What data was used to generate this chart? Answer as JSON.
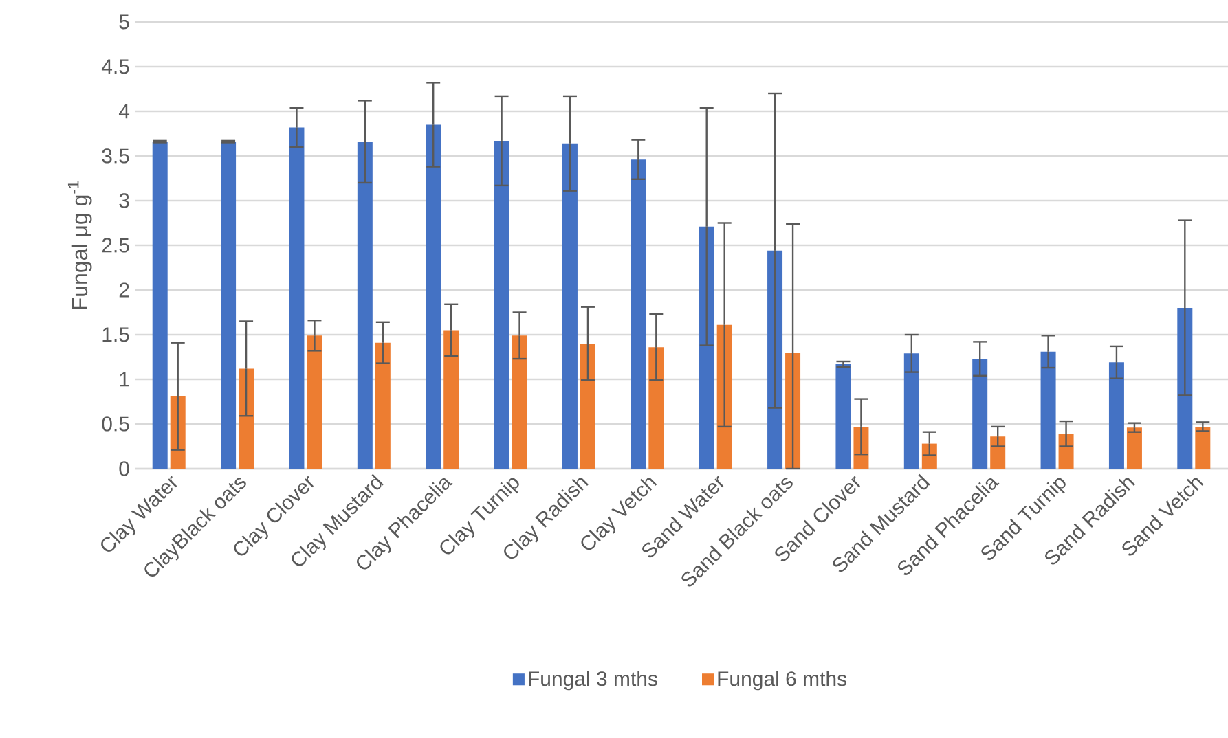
{
  "chart_data": {
    "type": "bar",
    "ylabel": "Fungal μg g$^{-1}$",
    "categories": [
      "Clay Water",
      "ClayBlack oats",
      "Clay Clover",
      "Clay Mustard",
      "Clay Phacelia",
      "Clay Turnip",
      "Clay Radish",
      "Clay Vetch",
      "Sand Water",
      "Sand Black oats",
      "Sand Clover",
      "Sand Mustard",
      "Sand Phacelia",
      "Sand Turnip",
      "Sand Radish",
      "Sand Vetch"
    ],
    "series": [
      {
        "name": "Fungal 3 mths",
        "color": "#4472c4",
        "values": [
          3.66,
          3.66,
          3.82,
          3.66,
          3.85,
          3.67,
          3.64,
          3.46,
          2.71,
          2.44,
          1.17,
          1.29,
          1.23,
          1.31,
          1.19,
          1.8
        ],
        "errors": [
          0.01,
          0.01,
          0.22,
          0.46,
          0.47,
          0.5,
          0.53,
          0.22,
          1.33,
          1.76,
          0.03,
          0.21,
          0.19,
          0.18,
          0.18,
          0.98
        ]
      },
      {
        "name": "Fungal 6 mths",
        "color": "#ed7d31",
        "values": [
          0.81,
          1.12,
          1.49,
          1.41,
          1.55,
          1.49,
          1.4,
          1.36,
          1.61,
          1.3,
          0.47,
          0.28,
          0.36,
          0.39,
          0.46,
          0.47
        ],
        "errors": [
          0.6,
          0.53,
          0.17,
          0.23,
          0.29,
          0.26,
          0.41,
          0.37,
          1.14,
          [
            0,
            2.74
          ],
          0.31,
          0.13,
          0.11,
          0.14,
          0.05,
          0.05
        ]
      }
    ],
    "ylim": [
      0,
      5
    ],
    "yticks": [
      0,
      0.5,
      1,
      1.5,
      2,
      2.5,
      3,
      3.5,
      4,
      4.5,
      5
    ],
    "grid": "y",
    "legend": "bottom"
  }
}
